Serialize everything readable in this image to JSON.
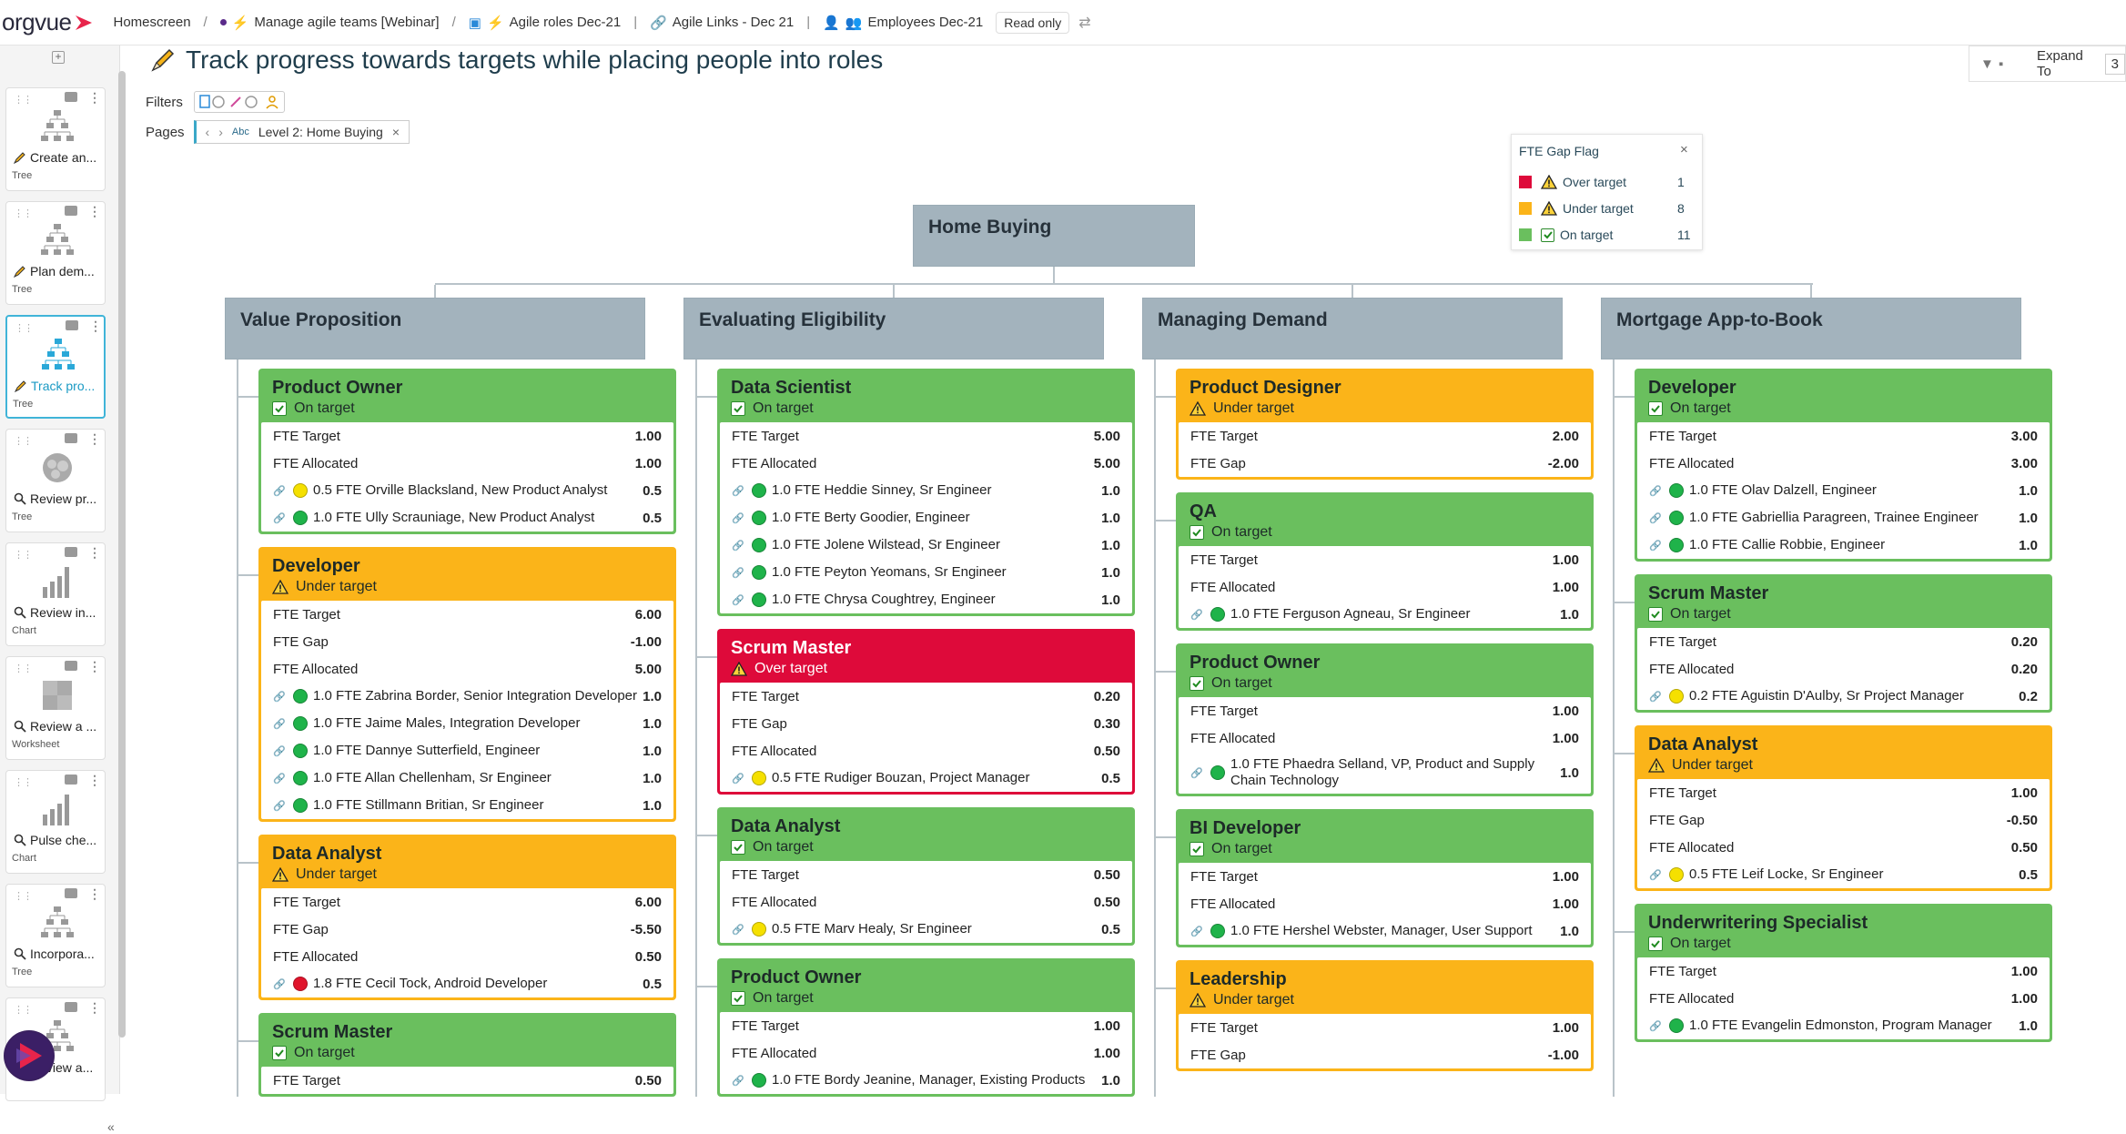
{
  "app": {
    "logo": "orgvue"
  },
  "breadcrumbs": [
    {
      "label": "Homescreen"
    },
    {
      "label": "Manage agile teams [Webinar]"
    },
    {
      "label": "Agile roles Dec-21"
    },
    {
      "label": "Agile Links - Dec 21"
    },
    {
      "label": "Employees Dec-21"
    }
  ],
  "readonly_label": "Read only",
  "sidebar": {
    "items": [
      {
        "label": "Create an...",
        "type": "Tree",
        "kind": "tree",
        "mode": "edit"
      },
      {
        "label": "Plan dem...",
        "type": "Tree",
        "kind": "tree",
        "mode": "edit"
      },
      {
        "label": "Track pro...",
        "type": "Tree",
        "kind": "tree",
        "mode": "edit",
        "active": true
      },
      {
        "label": "Review pr...",
        "type": "Tree",
        "kind": "bubble",
        "mode": "view"
      },
      {
        "label": "Review in...",
        "type": "Chart",
        "kind": "chart",
        "mode": "view"
      },
      {
        "label": "Review a ...",
        "type": "Worksheet",
        "kind": "worksheet",
        "mode": "view"
      },
      {
        "label": "Pulse che...",
        "type": "Chart",
        "kind": "chart",
        "mode": "view"
      },
      {
        "label": "Incorpora...",
        "type": "Tree",
        "kind": "tree",
        "mode": "view"
      },
      {
        "label": "Review a...",
        "type": "",
        "kind": "tree",
        "mode": "view"
      }
    ]
  },
  "page_title": "Track progress towards targets while placing people into roles",
  "filters_label": "Filters",
  "pages_label": "Pages",
  "page_selector": {
    "tag": "Abc",
    "value": "Level 2: Home Buying"
  },
  "expand_to": {
    "label": "Expand To",
    "value": "3"
  },
  "legend": {
    "title": "FTE Gap Flag",
    "items": [
      {
        "label": "Over target",
        "count": "1",
        "color": "#de0a3a",
        "icon": "warning-icon"
      },
      {
        "label": "Under target",
        "count": "8",
        "color": "#fbb419",
        "icon": "warning-icon"
      },
      {
        "label": "On target",
        "count": "11",
        "color": "#6abf5e",
        "icon": "check-icon"
      }
    ]
  },
  "colors": {
    "on": "#6abf5e",
    "under": "#fbb419",
    "over": "#de0a3a",
    "dept": "#a3b3bd",
    "dot_green": "#1fb34a",
    "dot_yellow": "#f5e000",
    "dot_red": "#e0142c"
  },
  "root": {
    "title": "Home Buying"
  },
  "departments": [
    {
      "title": "Value Proposition",
      "roles": [
        {
          "title": "Product Owner",
          "status": "On target",
          "flag": "on",
          "rows": [
            {
              "k": "FTE Target",
              "v": "1.00"
            },
            {
              "k": "FTE Allocated",
              "v": "1.00"
            },
            {
              "p": "0.5 FTE Orville Blacksland, New Product Analyst",
              "v": "0.5",
              "dot": "yellow"
            },
            {
              "p": "1.0 FTE Ully Scrauniage, New Product Analyst",
              "v": "0.5",
              "dot": "green"
            }
          ]
        },
        {
          "title": "Developer",
          "status": "Under target",
          "flag": "under",
          "rows": [
            {
              "k": "FTE Target",
              "v": "6.00"
            },
            {
              "k": "FTE Gap",
              "v": "-1.00"
            },
            {
              "k": "FTE Allocated",
              "v": "5.00"
            },
            {
              "p": "1.0 FTE Zabrina Border, Senior Integration Developer",
              "v": "1.0",
              "dot": "green"
            },
            {
              "p": "1.0 FTE Jaime Males, Integration Developer",
              "v": "1.0",
              "dot": "green"
            },
            {
              "p": "1.0 FTE Dannye Sutterfield, Engineer",
              "v": "1.0",
              "dot": "green"
            },
            {
              "p": "1.0 FTE Allan Chellenham, Sr Engineer",
              "v": "1.0",
              "dot": "green"
            },
            {
              "p": "1.0 FTE Stillmann Britian, Sr Engineer",
              "v": "1.0",
              "dot": "green"
            }
          ]
        },
        {
          "title": "Data Analyst",
          "status": "Under target",
          "flag": "under",
          "rows": [
            {
              "k": "FTE Target",
              "v": "6.00"
            },
            {
              "k": "FTE Gap",
              "v": "-5.50"
            },
            {
              "k": "FTE Allocated",
              "v": "0.50"
            },
            {
              "p": "1.8 FTE Cecil Tock, Android Developer",
              "v": "0.5",
              "dot": "red"
            }
          ]
        },
        {
          "title": "Scrum Master",
          "status": "On target",
          "flag": "on",
          "rows": [
            {
              "k": "FTE Target",
              "v": "0.50"
            }
          ]
        }
      ]
    },
    {
      "title": "Evaluating Eligibility",
      "roles": [
        {
          "title": "Data Scientist",
          "status": "On target",
          "flag": "on",
          "rows": [
            {
              "k": "FTE Target",
              "v": "5.00"
            },
            {
              "k": "FTE Allocated",
              "v": "5.00"
            },
            {
              "p": "1.0 FTE Heddie Sinney, Sr Engineer",
              "v": "1.0",
              "dot": "green"
            },
            {
              "p": "1.0 FTE Berty Goodier, Engineer",
              "v": "1.0",
              "dot": "green"
            },
            {
              "p": "1.0 FTE Jolene Wilstead, Sr Engineer",
              "v": "1.0",
              "dot": "green"
            },
            {
              "p": "1.0 FTE Peyton Yeomans, Sr Engineer",
              "v": "1.0",
              "dot": "green"
            },
            {
              "p": "1.0 FTE Chrysa Coughtrey, Engineer",
              "v": "1.0",
              "dot": "green"
            }
          ]
        },
        {
          "title": "Scrum Master",
          "status": "Over target",
          "flag": "over",
          "rows": [
            {
              "k": "FTE Target",
              "v": "0.20"
            },
            {
              "k": "FTE Gap",
              "v": "0.30"
            },
            {
              "k": "FTE Allocated",
              "v": "0.50"
            },
            {
              "p": "0.5 FTE Rudiger Bouzan, Project Manager",
              "v": "0.5",
              "dot": "yellow"
            }
          ]
        },
        {
          "title": "Data Analyst",
          "status": "On target",
          "flag": "on",
          "rows": [
            {
              "k": "FTE Target",
              "v": "0.50"
            },
            {
              "k": "FTE Allocated",
              "v": "0.50"
            },
            {
              "p": "0.5 FTE Marv Healy, Sr Engineer",
              "v": "0.5",
              "dot": "yellow"
            }
          ]
        },
        {
          "title": "Product Owner",
          "status": "On target",
          "flag": "on",
          "rows": [
            {
              "k": "FTE Target",
              "v": "1.00"
            },
            {
              "k": "FTE Allocated",
              "v": "1.00"
            },
            {
              "p": "1.0 FTE Bordy Jeanine, Manager, Existing Products",
              "v": "1.0",
              "dot": "green"
            }
          ]
        }
      ]
    },
    {
      "title": "Managing Demand",
      "roles": [
        {
          "title": "Product Designer",
          "status": "Under target",
          "flag": "under",
          "rows": [
            {
              "k": "FTE Target",
              "v": "2.00"
            },
            {
              "k": "FTE Gap",
              "v": "-2.00"
            }
          ]
        },
        {
          "title": "QA",
          "status": "On target",
          "flag": "on",
          "rows": [
            {
              "k": "FTE Target",
              "v": "1.00"
            },
            {
              "k": "FTE Allocated",
              "v": "1.00"
            },
            {
              "p": "1.0 FTE Ferguson Agneau, Sr Engineer",
              "v": "1.0",
              "dot": "green"
            }
          ]
        },
        {
          "title": "Product Owner",
          "status": "On target",
          "flag": "on",
          "rows": [
            {
              "k": "FTE Target",
              "v": "1.00"
            },
            {
              "k": "FTE Allocated",
              "v": "1.00"
            },
            {
              "p": "1.0 FTE Phaedra Selland, VP, Product and Supply Chain Technology",
              "v": "1.0",
              "dot": "green"
            }
          ]
        },
        {
          "title": "BI Developer",
          "status": "On target",
          "flag": "on",
          "rows": [
            {
              "k": "FTE Target",
              "v": "1.00"
            },
            {
              "k": "FTE Allocated",
              "v": "1.00"
            },
            {
              "p": "1.0 FTE Hershel Webster, Manager, User Support",
              "v": "1.0",
              "dot": "green"
            }
          ]
        },
        {
          "title": "Leadership",
          "status": "Under target",
          "flag": "under",
          "rows": [
            {
              "k": "FTE Target",
              "v": "1.00"
            },
            {
              "k": "FTE Gap",
              "v": "-1.00"
            }
          ]
        }
      ]
    },
    {
      "title": "Mortgage App-to-Book",
      "roles": [
        {
          "title": "Developer",
          "status": "On target",
          "flag": "on",
          "rows": [
            {
              "k": "FTE Target",
              "v": "3.00"
            },
            {
              "k": "FTE Allocated",
              "v": "3.00"
            },
            {
              "p": "1.0 FTE Olav Dalzell, Engineer",
              "v": "1.0",
              "dot": "green"
            },
            {
              "p": "1.0 FTE Gabriellia Paragreen, Trainee Engineer",
              "v": "1.0",
              "dot": "green"
            },
            {
              "p": "1.0 FTE Callie Robbie, Engineer",
              "v": "1.0",
              "dot": "green"
            }
          ]
        },
        {
          "title": "Scrum Master",
          "status": "On target",
          "flag": "on",
          "rows": [
            {
              "k": "FTE Target",
              "v": "0.20"
            },
            {
              "k": "FTE Allocated",
              "v": "0.20"
            },
            {
              "p": "0.2 FTE Aguistin D'Aulby, Sr Project Manager",
              "v": "0.2",
              "dot": "yellow"
            }
          ]
        },
        {
          "title": "Data Analyst",
          "status": "Under target",
          "flag": "under",
          "rows": [
            {
              "k": "FTE Target",
              "v": "1.00"
            },
            {
              "k": "FTE Gap",
              "v": "-0.50"
            },
            {
              "k": "FTE Allocated",
              "v": "0.50"
            },
            {
              "p": "0.5 FTE Leif Locke, Sr Engineer",
              "v": "0.5",
              "dot": "yellow"
            }
          ]
        },
        {
          "title": "Underwritering Specialist",
          "status": "On target",
          "flag": "on",
          "rows": [
            {
              "k": "FTE Target",
              "v": "1.00"
            },
            {
              "k": "FTE Allocated",
              "v": "1.00"
            },
            {
              "p": "1.0 FTE Evangelin Edmonston, Program Manager",
              "v": "1.0",
              "dot": "green"
            }
          ]
        }
      ]
    }
  ]
}
